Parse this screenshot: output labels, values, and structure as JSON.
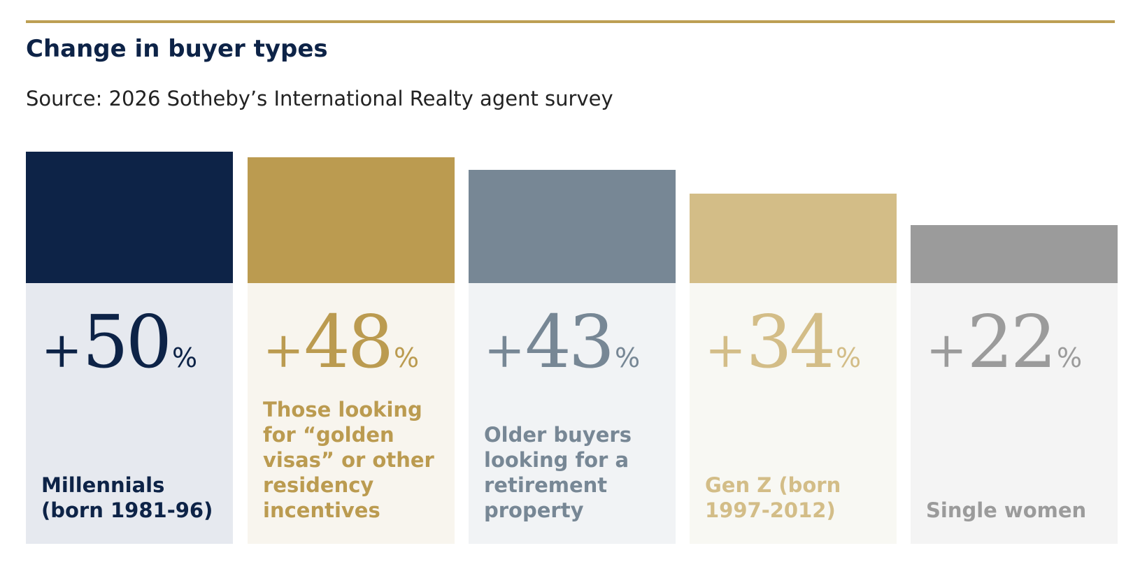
{
  "header": {
    "title": "Change in buyer types",
    "subtitle": "Source: 2026 Sotheby’s International Realty agent survey"
  },
  "chart_data": {
    "type": "bar",
    "title": "Change in buyer types",
    "subtitle": "Source: 2026 Sotheby’s International Realty agent survey",
    "xlabel": "",
    "ylabel": "",
    "unit": "%",
    "ylim": [
      0,
      50
    ],
    "grid": false,
    "categories": [
      "Millennials (born 1981-96)",
      "Those looking for “golden visas” or other residency incentives",
      "Older buyers looking for a retirement property",
      "Gen Z (born 1997-2012)",
      "Single women"
    ],
    "values": [
      50,
      48,
      43,
      34,
      22
    ],
    "value_labels": [
      {
        "sign": "+",
        "number": "50",
        "unit": "%"
      },
      {
        "sign": "+",
        "number": "48",
        "unit": "%"
      },
      {
        "sign": "+",
        "number": "43",
        "unit": "%"
      },
      {
        "sign": "+",
        "number": "34",
        "unit": "%"
      },
      {
        "sign": "+",
        "number": "22",
        "unit": "%"
      }
    ],
    "colors": {
      "bars": [
        "#0d2347",
        "#bb9b50",
        "#778795",
        "#d3bd87",
        "#9b9b9b"
      ],
      "panels": [
        "#e6e9ef",
        "#f8f5ee",
        "#f1f3f5",
        "#f8f8f3",
        "#f4f4f4"
      ],
      "text": [
        "#0d2347",
        "#bb9b50",
        "#778795",
        "#d3bd87",
        "#9b9b9b"
      ],
      "accent_rule": "#bd9f54"
    }
  }
}
